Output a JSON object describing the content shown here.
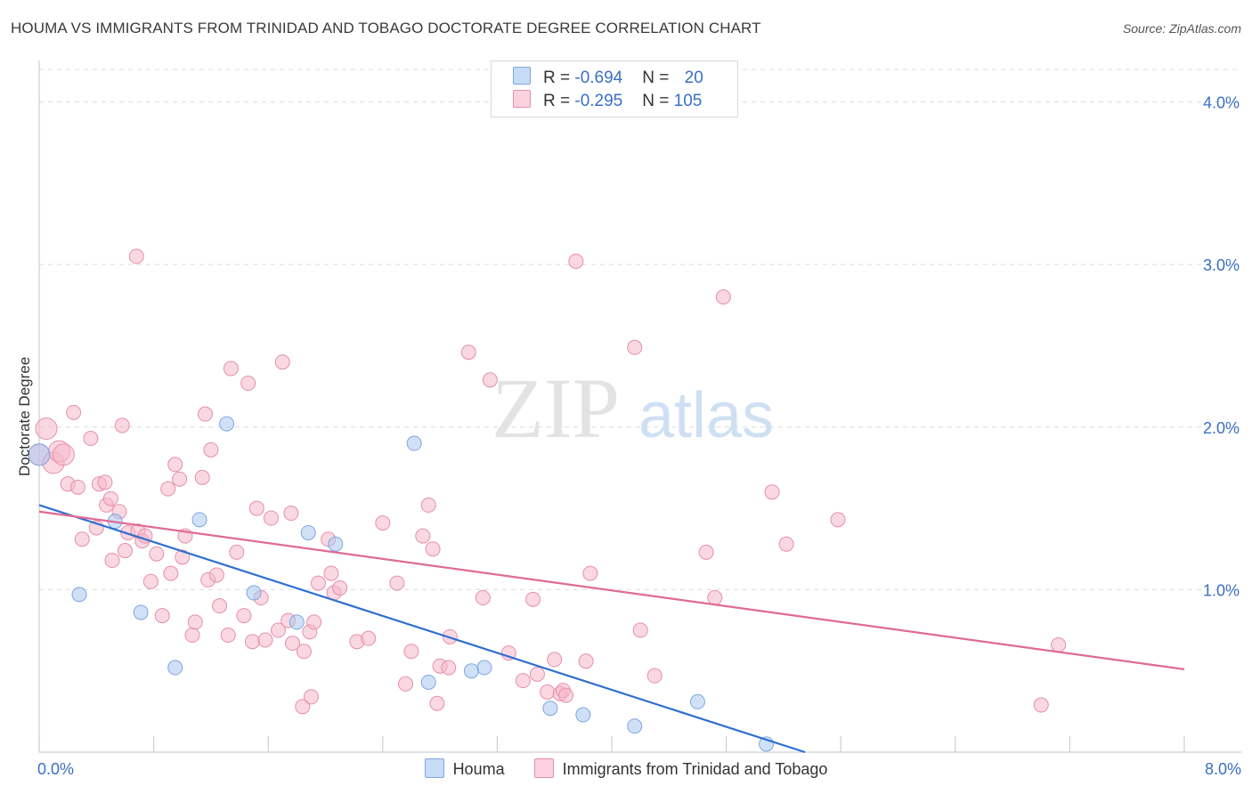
{
  "title": "HOUMA VS IMMIGRANTS FROM TRINIDAD AND TOBAGO DOCTORATE DEGREE CORRELATION CHART",
  "source": "Source: ZipAtlas.com",
  "watermark": {
    "zip": "ZIP",
    "atlas": "atlas"
  },
  "legend": {
    "rows": [
      {
        "r_label": "R = ",
        "r_value": "-0.694",
        "n_label": "N = ",
        "n_value": "20",
        "color": "#a9c8f0"
      },
      {
        "r_label": "R = ",
        "r_value": "-0.295",
        "n_label": "N = ",
        "n_value": "105",
        "color": "#f6b8cb"
      }
    ]
  },
  "bottom_legend": [
    {
      "label": "Houma",
      "color": "#a9c8f0",
      "border": "#7ea6de"
    },
    {
      "label": "Immigrants from Trinidad and Tobago",
      "color": "#f6b8cb",
      "border": "#e58fa9"
    }
  ],
  "chart_data": {
    "type": "scatter",
    "title": "HOUMA VS IMMIGRANTS FROM TRINIDAD AND TOBAGO DOCTORATE DEGREE CORRELATION CHART",
    "xlabel": "",
    "ylabel": "Doctorate Degree",
    "xlim": [
      0,
      8
    ],
    "ylim": [
      0,
      4.2
    ],
    "x_tick_labels": [
      "0.0%",
      "8.0%"
    ],
    "y_ticks": [
      1.0,
      2.0,
      3.0,
      4.0
    ],
    "y_tick_labels": [
      "1.0%",
      "2.0%",
      "3.0%",
      "4.0%"
    ],
    "grid": true,
    "series": [
      {
        "name": "Houma",
        "color": "#a9c8f0",
        "stroke": "#7ea6de",
        "line_color": "#2f6fcf",
        "trend": {
          "x0": 0.0,
          "y0": 1.52,
          "x1": 5.35,
          "y1": 0.0
        },
        "points": [
          [
            0.0,
            1.83
          ],
          [
            0.28,
            0.97
          ],
          [
            0.53,
            1.42
          ],
          [
            0.71,
            0.86
          ],
          [
            0.95,
            0.52
          ],
          [
            1.12,
            1.43
          ],
          [
            1.31,
            2.02
          ],
          [
            1.5,
            0.98
          ],
          [
            1.8,
            0.8
          ],
          [
            1.88,
            1.35
          ],
          [
            2.07,
            1.28
          ],
          [
            2.62,
            1.9
          ],
          [
            2.72,
            0.43
          ],
          [
            3.02,
            0.5
          ],
          [
            3.11,
            0.52
          ],
          [
            3.57,
            0.27
          ],
          [
            3.8,
            0.23
          ],
          [
            4.16,
            0.16
          ],
          [
            4.6,
            0.31
          ],
          [
            5.08,
            0.05
          ]
        ]
      },
      {
        "name": "Immigrants from Trinidad and Tobago",
        "color": "#f6b8cb",
        "stroke": "#e58fa9",
        "line_color": "#e06a93",
        "trend": {
          "x0": 0.0,
          "y0": 1.48,
          "x1": 8.0,
          "y1": 0.51
        },
        "points": [
          [
            0.0,
            1.83
          ],
          [
            0.05,
            1.99
          ],
          [
            0.1,
            1.78
          ],
          [
            0.14,
            1.85
          ],
          [
            0.17,
            1.83
          ],
          [
            0.24,
            2.09
          ],
          [
            0.2,
            1.65
          ],
          [
            0.27,
            1.63
          ],
          [
            0.3,
            1.31
          ],
          [
            0.36,
            1.93
          ],
          [
            0.4,
            1.38
          ],
          [
            0.42,
            1.65
          ],
          [
            0.46,
            1.66
          ],
          [
            0.47,
            1.52
          ],
          [
            0.5,
            1.56
          ],
          [
            0.51,
            1.18
          ],
          [
            0.56,
            1.48
          ],
          [
            0.58,
            2.01
          ],
          [
            0.6,
            1.24
          ],
          [
            0.62,
            1.35
          ],
          [
            0.68,
            3.05
          ],
          [
            0.69,
            1.36
          ],
          [
            0.72,
            1.3
          ],
          [
            0.74,
            1.33
          ],
          [
            0.78,
            1.05
          ],
          [
            0.82,
            1.22
          ],
          [
            0.86,
            0.84
          ],
          [
            0.9,
            1.62
          ],
          [
            0.92,
            1.1
          ],
          [
            0.95,
            1.77
          ],
          [
            0.98,
            1.68
          ],
          [
            1.0,
            1.2
          ],
          [
            1.02,
            1.33
          ],
          [
            1.07,
            0.72
          ],
          [
            1.09,
            0.8
          ],
          [
            1.14,
            1.69
          ],
          [
            1.16,
            2.08
          ],
          [
            1.18,
            1.06
          ],
          [
            1.2,
            1.86
          ],
          [
            1.24,
            1.09
          ],
          [
            1.26,
            0.9
          ],
          [
            1.32,
            0.72
          ],
          [
            1.34,
            2.36
          ],
          [
            1.38,
            1.23
          ],
          [
            1.43,
            0.84
          ],
          [
            1.46,
            2.27
          ],
          [
            1.49,
            0.68
          ],
          [
            1.52,
            1.5
          ],
          [
            1.55,
            0.95
          ],
          [
            1.58,
            0.69
          ],
          [
            1.62,
            1.44
          ],
          [
            1.67,
            0.75
          ],
          [
            1.7,
            2.4
          ],
          [
            1.74,
            0.81
          ],
          [
            1.76,
            1.47
          ],
          [
            1.77,
            0.67
          ],
          [
            1.84,
            0.28
          ],
          [
            1.85,
            0.62
          ],
          [
            1.89,
            0.74
          ],
          [
            1.9,
            0.34
          ],
          [
            1.92,
            0.8
          ],
          [
            1.95,
            1.04
          ],
          [
            2.02,
            1.31
          ],
          [
            2.04,
            1.1
          ],
          [
            2.06,
            0.98
          ],
          [
            2.1,
            1.01
          ],
          [
            2.22,
            0.68
          ],
          [
            2.3,
            0.7
          ],
          [
            2.4,
            1.41
          ],
          [
            2.5,
            1.04
          ],
          [
            2.56,
            0.42
          ],
          [
            2.6,
            0.62
          ],
          [
            2.68,
            1.33
          ],
          [
            2.72,
            1.52
          ],
          [
            2.75,
            1.25
          ],
          [
            2.78,
            0.3
          ],
          [
            2.8,
            0.53
          ],
          [
            2.86,
            0.52
          ],
          [
            2.87,
            0.71
          ],
          [
            3.0,
            2.46
          ],
          [
            3.1,
            0.95
          ],
          [
            3.15,
            2.29
          ],
          [
            3.28,
            0.61
          ],
          [
            3.38,
            0.44
          ],
          [
            3.45,
            0.94
          ],
          [
            3.48,
            0.48
          ],
          [
            3.55,
            0.37
          ],
          [
            3.6,
            0.57
          ],
          [
            3.64,
            0.36
          ],
          [
            3.66,
            0.38
          ],
          [
            3.68,
            0.35
          ],
          [
            3.75,
            3.02
          ],
          [
            3.82,
            0.56
          ],
          [
            3.85,
            1.1
          ],
          [
            4.16,
            2.49
          ],
          [
            4.2,
            0.75
          ],
          [
            4.3,
            0.47
          ],
          [
            4.66,
            1.23
          ],
          [
            4.72,
            0.95
          ],
          [
            4.78,
            2.8
          ],
          [
            5.12,
            1.6
          ],
          [
            5.22,
            1.28
          ],
          [
            5.58,
            1.43
          ],
          [
            7.12,
            0.66
          ],
          [
            7.0,
            0.29
          ]
        ]
      }
    ]
  }
}
